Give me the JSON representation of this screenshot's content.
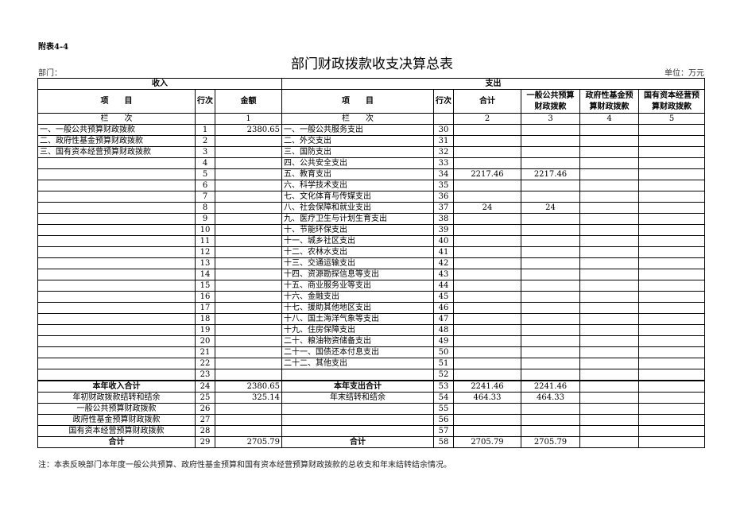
{
  "header": {
    "attachment": "附表4-4",
    "title": "部门财政拨款收支决算总表",
    "department": "部门：",
    "unit": "单位：万元"
  },
  "columns": {
    "income": "收入",
    "expense": "支出",
    "item": "项　　目",
    "row_no": "行次",
    "amount": "金额",
    "total": "合计",
    "general": "一般公共预算财政拨款",
    "fund": "政府性基金预算财政拨款",
    "state": "国有资本经营预算财政拨款",
    "col_label": "栏　　次",
    "col_nums": [
      "1",
      "2",
      "3",
      "4",
      "5"
    ]
  },
  "rows": [
    {
      "in_item": "一、一般公共预算财政拨款",
      "in_no": "1",
      "in_amt": "2380.65",
      "ex_item": "一、一般公共服务支出",
      "ex_no": "30",
      "t": "",
      "g": "",
      "f": "",
      "s": ""
    },
    {
      "in_item": "二、政府性基金预算财政拨款",
      "in_no": "2",
      "in_amt": "",
      "ex_item": "二、外交支出",
      "ex_no": "31",
      "t": "",
      "g": "",
      "f": "",
      "s": ""
    },
    {
      "in_item": "三、国有资本经营预算财政拨款",
      "in_no": "3",
      "in_amt": "",
      "ex_item": "三、国防支出",
      "ex_no": "32",
      "t": "",
      "g": "",
      "f": "",
      "s": ""
    },
    {
      "in_item": "",
      "in_no": "4",
      "in_amt": "",
      "ex_item": "四、公共安全支出",
      "ex_no": "33",
      "t": "",
      "g": "",
      "f": "",
      "s": ""
    },
    {
      "in_item": "",
      "in_no": "5",
      "in_amt": "",
      "ex_item": "五、教育支出",
      "ex_no": "34",
      "t": "2217.46",
      "g": "2217.46",
      "f": "",
      "s": ""
    },
    {
      "in_item": "",
      "in_no": "6",
      "in_amt": "",
      "ex_item": "六、科学技术支出",
      "ex_no": "35",
      "t": "",
      "g": "",
      "f": "",
      "s": ""
    },
    {
      "in_item": "",
      "in_no": "7",
      "in_amt": "",
      "ex_item": "七、文化体育与传媒支出",
      "ex_no": "36",
      "t": "",
      "g": "",
      "f": "",
      "s": ""
    },
    {
      "in_item": "",
      "in_no": "8",
      "in_amt": "",
      "ex_item": "八、社会保障和就业支出",
      "ex_no": "37",
      "t": "24",
      "g": "24",
      "f": "",
      "s": ""
    },
    {
      "in_item": "",
      "in_no": "9",
      "in_amt": "",
      "ex_item": "九、医疗卫生与计划生育支出",
      "ex_no": "38",
      "t": "",
      "g": "",
      "f": "",
      "s": ""
    },
    {
      "in_item": "",
      "in_no": "10",
      "in_amt": "",
      "ex_item": "十、节能环保支出",
      "ex_no": "39",
      "t": "",
      "g": "",
      "f": "",
      "s": ""
    },
    {
      "in_item": "",
      "in_no": "11",
      "in_amt": "",
      "ex_item": "十一、城乡社区支出",
      "ex_no": "40",
      "t": "",
      "g": "",
      "f": "",
      "s": ""
    },
    {
      "in_item": "",
      "in_no": "12",
      "in_amt": "",
      "ex_item": "十二、农林水支出",
      "ex_no": "41",
      "t": "",
      "g": "",
      "f": "",
      "s": ""
    },
    {
      "in_item": "",
      "in_no": "13",
      "in_amt": "",
      "ex_item": "十三、交通运输支出",
      "ex_no": "42",
      "t": "",
      "g": "",
      "f": "",
      "s": ""
    },
    {
      "in_item": "",
      "in_no": "14",
      "in_amt": "",
      "ex_item": "十四、资源勘探信息等支出",
      "ex_no": "43",
      "t": "",
      "g": "",
      "f": "",
      "s": ""
    },
    {
      "in_item": "",
      "in_no": "15",
      "in_amt": "",
      "ex_item": "十五、商业服务业等支出",
      "ex_no": "44",
      "t": "",
      "g": "",
      "f": "",
      "s": ""
    },
    {
      "in_item": "",
      "in_no": "16",
      "in_amt": "",
      "ex_item": "十六、金融支出",
      "ex_no": "45",
      "t": "",
      "g": "",
      "f": "",
      "s": ""
    },
    {
      "in_item": "",
      "in_no": "17",
      "in_amt": "",
      "ex_item": "十七、援助其他地区支出",
      "ex_no": "46",
      "t": "",
      "g": "",
      "f": "",
      "s": ""
    },
    {
      "in_item": "",
      "in_no": "18",
      "in_amt": "",
      "ex_item": "十八、国土海洋气象等支出",
      "ex_no": "47",
      "t": "",
      "g": "",
      "f": "",
      "s": ""
    },
    {
      "in_item": "",
      "in_no": "19",
      "in_amt": "",
      "ex_item": "十九、住房保障支出",
      "ex_no": "48",
      "t": "",
      "g": "",
      "f": "",
      "s": ""
    },
    {
      "in_item": "",
      "in_no": "20",
      "in_amt": "",
      "ex_item": "二十、粮油物资储备支出",
      "ex_no": "49",
      "t": "",
      "g": "",
      "f": "",
      "s": ""
    },
    {
      "in_item": "",
      "in_no": "21",
      "in_amt": "",
      "ex_item": "二十一、国债还本付息支出",
      "ex_no": "50",
      "t": "",
      "g": "",
      "f": "",
      "s": ""
    },
    {
      "in_item": "",
      "in_no": "22",
      "in_amt": "",
      "ex_item": "二十二、其他支出",
      "ex_no": "51",
      "t": "",
      "g": "",
      "f": "",
      "s": ""
    },
    {
      "in_item": "",
      "in_no": "23",
      "in_amt": "",
      "ex_item": "",
      "ex_no": "52",
      "t": "",
      "g": "",
      "f": "",
      "s": ""
    },
    {
      "in_item": "本年收入合计",
      "in_no": "24",
      "in_amt": "2380.65",
      "ex_item": "本年支出合计",
      "ex_no": "53",
      "t": "2241.46",
      "g": "2241.46",
      "f": "",
      "s": "",
      "bold": true,
      "center": true
    },
    {
      "in_item": "年初财政拨款结转和结余",
      "in_no": "25",
      "in_amt": "325.14",
      "ex_item": "年末结转和结余",
      "ex_no": "54",
      "t": "464.33",
      "g": "464.33",
      "f": "",
      "s": "",
      "center": true
    },
    {
      "in_item": "一般公共预算财政拨款",
      "in_no": "26",
      "in_amt": "",
      "ex_item": "",
      "ex_no": "55",
      "t": "",
      "g": "",
      "f": "",
      "s": "",
      "center": true
    },
    {
      "in_item": "政府性基金预算财政拨款",
      "in_no": "27",
      "in_amt": "",
      "ex_item": "",
      "ex_no": "56",
      "t": "",
      "g": "",
      "f": "",
      "s": "",
      "center": true
    },
    {
      "in_item": "国有资本经营预算财政拨款",
      "in_no": "28",
      "in_amt": "",
      "ex_item": "",
      "ex_no": "57",
      "t": "",
      "g": "",
      "f": "",
      "s": "",
      "center": true
    },
    {
      "in_item": "合计",
      "in_no": "29",
      "in_amt": "2705.79",
      "ex_item": "合计",
      "ex_no": "58",
      "t": "2705.79",
      "g": "2705.79",
      "f": "",
      "s": "",
      "bold": true,
      "center": true
    }
  ],
  "note": "注：本表反映部门本年度一般公共预算、政府性基金预算和国有资本经营预算财政拨款的总收支和年末结转结余情况。"
}
